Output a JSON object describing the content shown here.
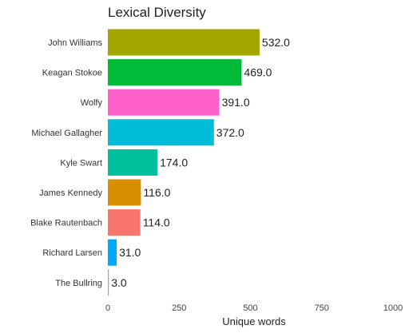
{
  "chart_data": {
    "type": "bar",
    "orientation": "horizontal",
    "title": "Lexical Diversity",
    "xlabel": "Unique words",
    "ylabel": "",
    "xlim": [
      0,
      1000
    ],
    "xticks": [
      0,
      250,
      500,
      750,
      1000
    ],
    "grid": false,
    "legend": "none",
    "categories": [
      "John Williams",
      "Keagan Stokoe",
      "Wolfy",
      "Michael Gallagher",
      "Kyle Swart",
      "James Kennedy",
      "Blake Rautenbach",
      "Richard Larsen",
      "The Bullring"
    ],
    "values": [
      532.0,
      469.0,
      391.0,
      372.0,
      174.0,
      116.0,
      114.0,
      31.0,
      3.0
    ],
    "value_labels": [
      "532.0",
      "469.0",
      "391.0",
      "372.0",
      "174.0",
      "116.0",
      "114.0",
      "31.0",
      "3.0"
    ],
    "colors": [
      "#A3A500",
      "#00BA38",
      "#FF61CC",
      "#00BCD8",
      "#00BF9D",
      "#D89000",
      "#F8766D",
      "#00A9FF",
      "#C77CFF"
    ]
  }
}
